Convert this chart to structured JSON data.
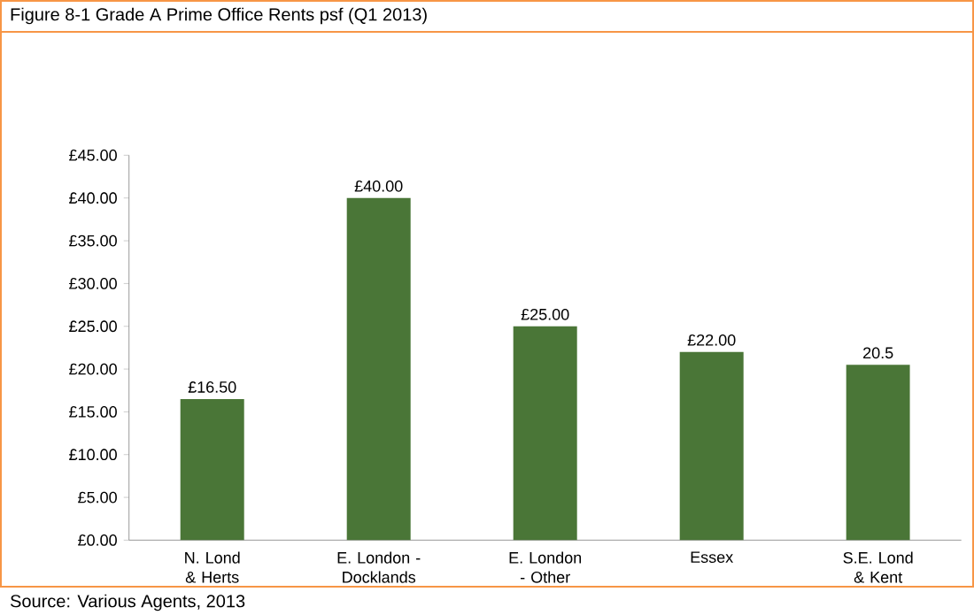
{
  "chart_data": {
    "type": "bar",
    "title": "Figure 8-1 Grade A Prime Office Rents psf (Q1 2013)",
    "categories": [
      "N. Lond & Herts",
      "E. London - Docklands",
      "E. London - Other",
      "Essex",
      "S.E. Lond & Kent"
    ],
    "values": [
      16.5,
      40,
      25,
      22,
      20.5
    ],
    "value_labels": [
      "£16.50",
      "£40.00",
      "£25.00",
      "£22.00",
      "20.5"
    ],
    "color": "#4a7637",
    "ylim": [
      0,
      45
    ],
    "yticks": [
      {
        "value": 0,
        "label": "£0.00"
      },
      {
        "value": 5,
        "label": "£5.00"
      },
      {
        "value": 10,
        "label": "£10.00"
      },
      {
        "value": 15,
        "label": "£15.00"
      },
      {
        "value": 20,
        "label": "£20.00"
      },
      {
        "value": 25,
        "label": "£25.00"
      },
      {
        "value": 30,
        "label": "£30.00"
      },
      {
        "value": 35,
        "label": "£35.00"
      },
      {
        "value": 40,
        "label": "£40.00"
      },
      {
        "value": 45,
        "label": "£45.00"
      }
    ],
    "annotations": [
      "Source: Various Agents, 2013"
    ]
  }
}
